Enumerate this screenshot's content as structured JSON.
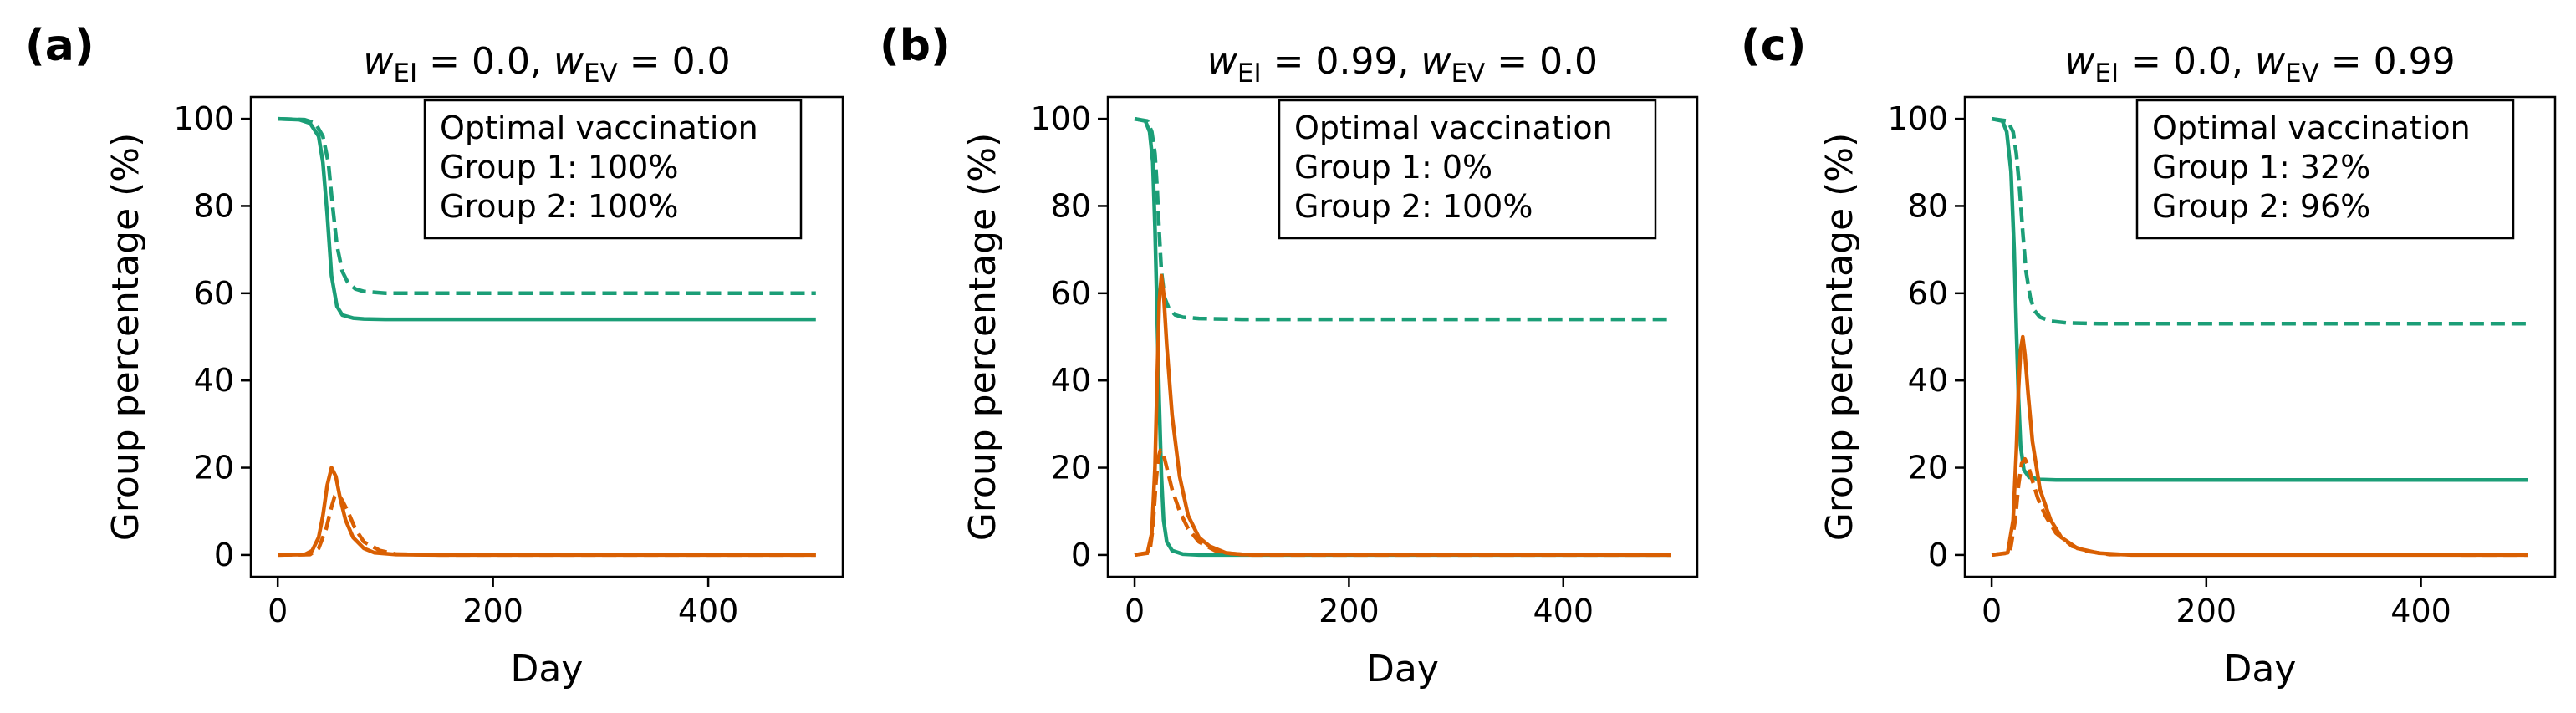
{
  "colors": {
    "susceptible": "#1b9e77",
    "infected": "#d95f02"
  },
  "chart_data": [
    {
      "type": "line",
      "panel_label": "(a)",
      "title": {
        "pre1": "w",
        "sub1": "EI",
        "mid": " = 0.0, ",
        "pre2": "w",
        "sub2": "EV",
        "post": " = 0.0"
      },
      "xlabel": "Day",
      "ylabel": "Group percentage (%)",
      "xlim": [
        -25,
        525
      ],
      "ylim": [
        -5,
        105
      ],
      "xticks": [
        0,
        200,
        400
      ],
      "yticks": [
        0,
        20,
        40,
        60,
        80,
        100
      ],
      "legend_box": {
        "placement": "top-right",
        "lines": [
          "Optimal vaccination",
          "Group 1: 100%",
          "Group 2: 100%"
        ]
      },
      "series": [
        {
          "color": "#1b9e77",
          "dash": false,
          "x": [
            0,
            20,
            30,
            38,
            42,
            46,
            50,
            55,
            60,
            70,
            80,
            100,
            150,
            500
          ],
          "y": [
            100,
            99.8,
            99,
            96,
            90,
            78,
            64,
            57,
            55,
            54.3,
            54.1,
            54,
            54,
            54
          ]
        },
        {
          "color": "#1b9e77",
          "dash": true,
          "x": [
            0,
            25,
            35,
            42,
            47,
            51,
            55,
            60,
            65,
            72,
            80,
            100,
            150,
            500
          ],
          "y": [
            100,
            99.8,
            99,
            96,
            90,
            80,
            71,
            65,
            62.5,
            61,
            60.4,
            60,
            60,
            60
          ]
        },
        {
          "color": "#d95f02",
          "dash": false,
          "x": [
            0,
            25,
            32,
            38,
            42,
            46,
            50,
            54,
            58,
            63,
            70,
            80,
            90,
            110,
            150,
            500
          ],
          "y": [
            0,
            0.1,
            1,
            4,
            9,
            16,
            20,
            18,
            13,
            8,
            4,
            1.5,
            0.5,
            0.1,
            0,
            0
          ]
        },
        {
          "color": "#d95f02",
          "dash": true,
          "x": [
            0,
            30,
            38,
            45,
            50,
            53,
            56,
            60,
            65,
            72,
            80,
            95,
            110,
            150,
            500
          ],
          "y": [
            0,
            0.1,
            1.5,
            6,
            11,
            13.5,
            14,
            12.5,
            10,
            6,
            3,
            1,
            0.2,
            0,
            0
          ]
        }
      ]
    },
    {
      "type": "line",
      "panel_label": "(b)",
      "title": {
        "pre1": "w",
        "sub1": "EI",
        "mid": " = 0.99, ",
        "pre2": "w",
        "sub2": "EV",
        "post": " = 0.0"
      },
      "xlabel": "Day",
      "ylabel": "Group percentage (%)",
      "xlim": [
        -25,
        525
      ],
      "ylim": [
        -5,
        105
      ],
      "xticks": [
        0,
        200,
        400
      ],
      "yticks": [
        0,
        20,
        40,
        60,
        80,
        100
      ],
      "legend_box": {
        "placement": "top-right",
        "lines": [
          "Optimal vaccination",
          "Group 1: 0%",
          "Group 2: 100%"
        ]
      },
      "series": [
        {
          "color": "#1b9e77",
          "dash": false,
          "x": [
            0,
            10,
            14,
            17,
            19,
            21,
            23,
            25,
            27,
            30,
            35,
            45,
            60,
            500
          ],
          "y": [
            100,
            99.5,
            97,
            90,
            75,
            55,
            35,
            18,
            8,
            3,
            1,
            0.2,
            0,
            0
          ]
        },
        {
          "color": "#1b9e77",
          "dash": true,
          "x": [
            0,
            12,
            16,
            19,
            21,
            23,
            25,
            28,
            32,
            38,
            45,
            60,
            100,
            500
          ],
          "y": [
            100,
            99.5,
            97,
            92,
            84,
            74,
            65,
            59,
            56.5,
            55,
            54.5,
            54.2,
            54,
            54
          ]
        },
        {
          "color": "#d95f02",
          "dash": false,
          "x": [
            0,
            12,
            16,
            19,
            21,
            23,
            25,
            27,
            30,
            35,
            42,
            50,
            60,
            70,
            85,
            100,
            500
          ],
          "y": [
            0,
            0.5,
            5,
            20,
            40,
            58,
            64,
            60,
            48,
            32,
            18,
            9,
            4,
            2,
            0.5,
            0.1,
            0
          ]
        },
        {
          "color": "#d95f02",
          "dash": true,
          "x": [
            0,
            14,
            17,
            20,
            22,
            24,
            27,
            30,
            35,
            42,
            50,
            60,
            75,
            90,
            110,
            500
          ],
          "y": [
            0,
            0.5,
            6,
            17,
            22,
            24,
            23,
            20,
            15,
            10,
            6,
            3,
            1,
            0.3,
            0,
            0
          ]
        }
      ]
    },
    {
      "type": "line",
      "panel_label": "(c)",
      "title": {
        "pre1": "w",
        "sub1": "EI",
        "mid": " = 0.0, ",
        "pre2": "w",
        "sub2": "EV",
        "post": " = 0.99"
      },
      "xlabel": "Day",
      "ylabel": "Group percentage (%)",
      "xlim": [
        -25,
        525
      ],
      "ylim": [
        -5,
        105
      ],
      "xticks": [
        0,
        200,
        400
      ],
      "yticks": [
        0,
        20,
        40,
        60,
        80,
        100
      ],
      "legend_box": {
        "placement": "top-right",
        "lines": [
          "Optimal vaccination",
          "Group 1: 32%",
          "Group 2: 96%"
        ]
      },
      "series": [
        {
          "color": "#1b9e77",
          "dash": false,
          "x": [
            0,
            10,
            14,
            18,
            21,
            23,
            25,
            27,
            30,
            35,
            45,
            60,
            100,
            500
          ],
          "y": [
            100,
            99.5,
            97,
            88,
            70,
            52,
            36,
            25,
            19.5,
            17.8,
            17.3,
            17.2,
            17.2,
            17.2
          ]
        },
        {
          "color": "#1b9e77",
          "dash": true,
          "x": [
            0,
            15,
            20,
            23,
            26,
            29,
            32,
            36,
            40,
            45,
            55,
            70,
            100,
            500
          ],
          "y": [
            100,
            99.5,
            97,
            92,
            84,
            74,
            65,
            59,
            56,
            54.5,
            53.6,
            53.2,
            53,
            53
          ]
        },
        {
          "color": "#d95f02",
          "dash": false,
          "x": [
            0,
            15,
            20,
            23,
            25,
            27,
            29,
            31,
            34,
            38,
            45,
            55,
            65,
            80,
            100,
            130,
            500
          ],
          "y": [
            0,
            0.5,
            8,
            24,
            38,
            47,
            50,
            46,
            37,
            26,
            15,
            8,
            4,
            1.5,
            0.4,
            0,
            0
          ]
        },
        {
          "color": "#d95f02",
          "dash": true,
          "x": [
            0,
            17,
            22,
            25,
            28,
            31,
            34,
            38,
            43,
            50,
            60,
            75,
            90,
            110,
            500
          ],
          "y": [
            0,
            0.5,
            8,
            16,
            21,
            22,
            20.5,
            17,
            13,
            9,
            5,
            2,
            0.8,
            0.1,
            0
          ]
        }
      ]
    }
  ]
}
